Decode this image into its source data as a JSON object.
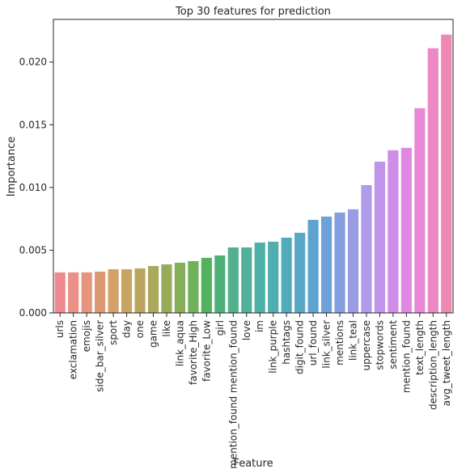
{
  "chart_data": {
    "type": "bar",
    "title": "Top 30 features for prediction",
    "xlabel": "Feature",
    "ylabel": "Importance",
    "ylim": [
      0,
      0.0234
    ],
    "yticks": [
      "0.000",
      "0.005",
      "0.010",
      "0.015",
      "0.020"
    ],
    "grid": false,
    "categories": [
      "urls",
      "exclamation",
      "emojis",
      "side_bar_silver",
      "sport",
      "day",
      "one",
      "game",
      "like",
      "link_aqua",
      "favorite_High",
      "favorite_Low",
      "girl",
      "mention_found mention_found",
      "love",
      "im",
      "link_purple",
      "hashtags",
      "digit_found",
      "url_found",
      "link_silver",
      "mentions",
      "link_teal",
      "uppercase",
      "stopwords",
      "sentiment",
      "mention_found",
      "text_length",
      "description_length",
      "avg_tweet_length"
    ],
    "values": [
      0.00323,
      0.00323,
      0.00323,
      0.00329,
      0.00348,
      0.00348,
      0.00355,
      0.00374,
      0.00387,
      0.004,
      0.00413,
      0.00439,
      0.00458,
      0.00522,
      0.00522,
      0.00561,
      0.00568,
      0.006,
      0.00639,
      0.00742,
      0.00768,
      0.008,
      0.00826,
      0.01019,
      0.01206,
      0.01297,
      0.01316,
      0.01632,
      0.0211,
      0.02219
    ],
    "colors": [
      "#f0898f",
      "#ec9088",
      "#e5957e",
      "#dd9a72",
      "#d49f68",
      "#c9a463",
      "#bba55e",
      "#aaa85a",
      "#98ab58",
      "#85ae58",
      "#6db258",
      "#52b25d",
      "#4fb178",
      "#52b08d",
      "#50b09b",
      "#4eafa6",
      "#50aeb0",
      "#52abba",
      "#56a8c4",
      "#5ca4cf",
      "#6ca1da",
      "#839fe0",
      "#9a9ce6",
      "#b09aea",
      "#c293ea",
      "#d08de8",
      "#df88e3",
      "#e888d6",
      "#ec88c4",
      "#ef89b3"
    ]
  }
}
